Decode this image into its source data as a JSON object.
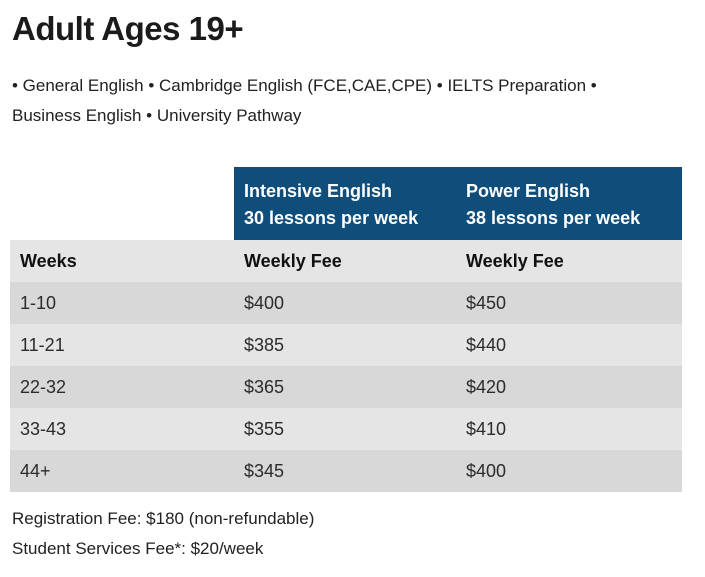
{
  "header": {
    "title": "Adult Ages 19+",
    "programs": "• General English • Cambridge English (FCE,CAE,CPE) • IELTS Preparation •\nBusiness English • University Pathway"
  },
  "table": {
    "column_groups": [
      {
        "title": "Intensive English",
        "subtitle": "30 lessons per week"
      },
      {
        "title": "Power English",
        "subtitle": "38 lessons per week"
      }
    ],
    "sub_headers": [
      "Weeks",
      "Weekly Fee",
      "Weekly Fee"
    ],
    "rows": [
      {
        "weeks": "1-10",
        "intensive_fee": "$400",
        "power_fee": "$450"
      },
      {
        "weeks": "11-21",
        "intensive_fee": "$385",
        "power_fee": "$440"
      },
      {
        "weeks": "22-32",
        "intensive_fee": "$365",
        "power_fee": "$420"
      },
      {
        "weeks": "33-43",
        "intensive_fee": "$355",
        "power_fee": "$410"
      },
      {
        "weeks": "44+",
        "intensive_fee": "$345",
        "power_fee": "$400"
      }
    ]
  },
  "footnotes": {
    "registration": "Registration Fee: $180 (non-refundable)",
    "student_services": "Student Services Fee*: $20/week"
  },
  "colors": {
    "table_header_bg": "#0f4d7a",
    "table_header_text": "#ffffff",
    "row_dark": "#d8d8d8",
    "row_light": "#e5e5e5",
    "body_text": "#202124"
  }
}
